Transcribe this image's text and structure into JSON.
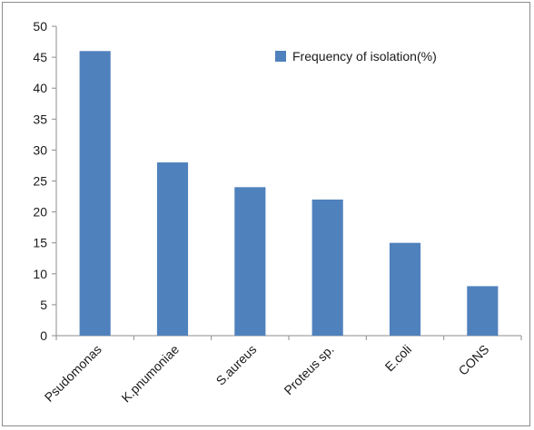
{
  "chart_data": {
    "type": "bar",
    "categories": [
      "Psudomonas",
      "K.pnumoniae",
      "S.aureus",
      "Proteus sp.",
      "E.coli",
      "CONS"
    ],
    "series": [
      {
        "name": "Frequency of isolation(%)",
        "values": [
          46,
          28,
          24,
          22,
          15,
          8
        ],
        "color": "#4f81bd"
      }
    ],
    "ylim": [
      0,
      50
    ],
    "yticks": [
      0,
      5,
      10,
      15,
      20,
      25,
      30,
      35,
      40,
      45,
      50
    ],
    "grid": false,
    "legend": "top-right",
    "title": "",
    "xlabel": "",
    "ylabel": ""
  }
}
